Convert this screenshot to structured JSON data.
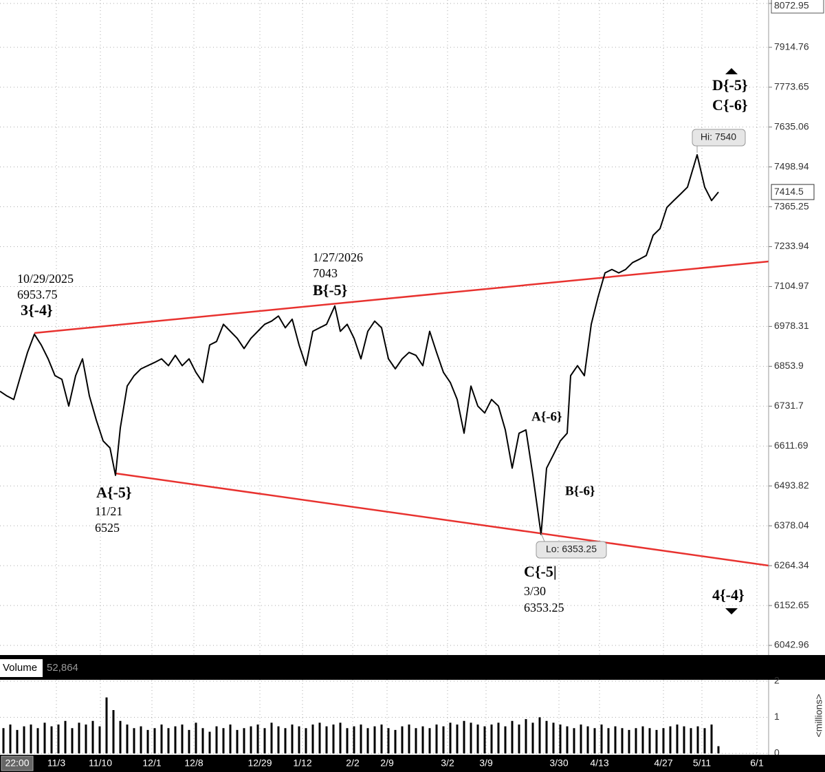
{
  "chart_data": [
    {
      "type": "line",
      "log_scale": true,
      "grid": true,
      "cursor_time": "22:00",
      "xlim": [
        0,
        112
      ],
      "xticks": [
        {
          "value": 8.2,
          "label": "11/3"
        },
        {
          "value": 14.6,
          "label": "11/10"
        },
        {
          "value": 22.1,
          "label": "12/1"
        },
        {
          "value": 28.2,
          "label": "12/8"
        },
        {
          "value": 37.8,
          "label": "12/29"
        },
        {
          "value": 44.0,
          "label": "1/12"
        },
        {
          "value": 51.3,
          "label": "2/2"
        },
        {
          "value": 56.3,
          "label": "2/9"
        },
        {
          "value": 65.1,
          "label": "3/2"
        },
        {
          "value": 70.7,
          "label": "3/9"
        },
        {
          "value": 81.3,
          "label": "3/30"
        },
        {
          "value": 87.2,
          "label": "4/13"
        },
        {
          "value": 96.5,
          "label": "4/27"
        },
        {
          "value": 102.1,
          "label": "5/11"
        },
        {
          "value": 110.1,
          "label": "6/1"
        }
      ],
      "ylim": [
        6042.96,
        8072.95
      ],
      "yticks": [
        6042.96,
        6152.65,
        6264.34,
        6378.04,
        6493.82,
        6611.69,
        6731.7,
        6853.9,
        6978.31,
        7104.97,
        7233.94,
        7365.25,
        7498.94,
        7635.06,
        7773.65,
        7914.76,
        8072.95
      ],
      "x": [
        0,
        1,
        2,
        3,
        4,
        5,
        6,
        7,
        8,
        9,
        10,
        11,
        12,
        13,
        14,
        15,
        16,
        16.8,
        17.5,
        18.5,
        19.5,
        20.5,
        21.5,
        22.5,
        23.5,
        24.5,
        25.5,
        26.5,
        27.5,
        28.5,
        29.5,
        30.5,
        31.5,
        32.5,
        33.5,
        34.5,
        35.5,
        36.5,
        37.5,
        38.5,
        39.5,
        40.5,
        41.5,
        42.5,
        43.5,
        44.5,
        45.5,
        46.5,
        47.5,
        48.7,
        49.5,
        50.5,
        51.5,
        52.5,
        53.5,
        54.5,
        55.5,
        56.5,
        57.5,
        58.5,
        59.5,
        60.5,
        61.5,
        62.5,
        63.5,
        64.5,
        65.5,
        66.5,
        67.5,
        68.5,
        69.5,
        70.5,
        71.5,
        72.5,
        73.5,
        74.5,
        75.5,
        76.5,
        77.5,
        78.7,
        79.5,
        80.5,
        81.5,
        82.5,
        83,
        84,
        85,
        86,
        87,
        88,
        89,
        90,
        91,
        92,
        93,
        94,
        95,
        96,
        97,
        98,
        99,
        100,
        101.4,
        102.5,
        103.5,
        104.5
      ],
      "series": [
        {
          "color": "#000000",
          "values": [
            6777,
            6763,
            6752,
            6825,
            6897,
            6953.75,
            6920,
            6877,
            6825,
            6814,
            6732,
            6825,
            6877,
            6763,
            6690,
            6627,
            6606,
            6525,
            6666,
            6793,
            6825,
            6846,
            6856,
            6866,
            6877,
            6856,
            6888,
            6856,
            6877,
            6835,
            6804,
            6920,
            6931,
            6985,
            6963,
            6941,
            6909,
            6941,
            6963,
            6985,
            6995,
            7011,
            6974,
            7001,
            6920,
            6856,
            6963,
            6974,
            6985,
            7043,
            6963,
            6985,
            6941,
            6877,
            6963,
            6995,
            6974,
            6877,
            6846,
            6877,
            6897,
            6888,
            6856,
            6963,
            6897,
            6835,
            6804,
            6752,
            6650,
            6793,
            6732,
            6711,
            6752,
            6732,
            6660,
            6546,
            6650,
            6660,
            6526,
            6353.25,
            6546,
            6586,
            6627,
            6650,
            6825,
            6856,
            6825,
            6985,
            7072,
            7149,
            7160,
            7149,
            7160,
            7182,
            7193,
            7205,
            7271,
            7293,
            7363,
            7386,
            7408,
            7431,
            7540,
            7431,
            7386,
            7414.5
          ]
        }
      ],
      "annotations": [
        "10/29/2025",
        "6953.75",
        "3{-4}",
        "1/27/2026",
        "7043",
        "B{-5}",
        "A{-5}",
        "11/21",
        "6525",
        "A{-6}",
        "B{-6}",
        "C{-5|",
        "3/30",
        "6353.25",
        "D{-5}",
        "C{-6}",
        "4{-4}",
        "Hi: 7540",
        "Lo: 6353.25"
      ]
    },
    {
      "type": "bar",
      "title": "Volume",
      "subtitle": "52,864",
      "ylabel": "<millions>",
      "color": "#000000",
      "xlim": [
        0,
        112
      ],
      "ylim": [
        0,
        2
      ],
      "yticks": [
        0,
        1,
        2
      ],
      "x": [
        0.5,
        1.5,
        2.5,
        3.5,
        4.5,
        5.5,
        6.5,
        7.5,
        8.5,
        9.5,
        10.5,
        11.5,
        12.5,
        13.5,
        14.5,
        15.5,
        16.5,
        17.5,
        18.5,
        19.5,
        20.5,
        21.5,
        22.5,
        23.5,
        24.5,
        25.5,
        26.5,
        27.5,
        28.5,
        29.5,
        30.5,
        31.5,
        32.5,
        33.5,
        34.5,
        35.5,
        36.5,
        37.5,
        38.5,
        39.5,
        40.5,
        41.5,
        42.5,
        43.5,
        44.5,
        45.5,
        46.5,
        47.5,
        48.5,
        49.5,
        50.5,
        51.5,
        52.5,
        53.5,
        54.5,
        55.5,
        56.5,
        57.5,
        58.5,
        59.5,
        60.5,
        61.5,
        62.5,
        63.5,
        64.5,
        65.5,
        66.5,
        67.5,
        68.5,
        69.5,
        70.5,
        71.5,
        72.5,
        73.5,
        74.5,
        75.5,
        76.5,
        77.5,
        78.5,
        79.5,
        80.5,
        81.5,
        82.5,
        83.5,
        84.5,
        85.5,
        86.5,
        87.5,
        88.5,
        89.5,
        90.5,
        91.5,
        92.5,
        93.5,
        94.5,
        95.5,
        96.5,
        97.5,
        98.5,
        99.5,
        100.5,
        101.5,
        102.5,
        103.5,
        104.5
      ],
      "values": [
        0.7,
        0.8,
        0.65,
        0.75,
        0.8,
        0.7,
        0.85,
        0.75,
        0.8,
        0.9,
        0.7,
        0.85,
        0.8,
        0.9,
        0.75,
        1.55,
        1.2,
        0.9,
        0.8,
        0.7,
        0.75,
        0.65,
        0.7,
        0.8,
        0.7,
        0.75,
        0.8,
        0.65,
        0.85,
        0.7,
        0.6,
        0.75,
        0.7,
        0.8,
        0.65,
        0.7,
        0.75,
        0.8,
        0.7,
        0.85,
        0.75,
        0.7,
        0.8,
        0.75,
        0.7,
        0.8,
        0.85,
        0.75,
        0.8,
        0.85,
        0.7,
        0.75,
        0.8,
        0.7,
        0.75,
        0.8,
        0.7,
        0.65,
        0.75,
        0.8,
        0.7,
        0.75,
        0.7,
        0.8,
        0.75,
        0.85,
        0.8,
        0.9,
        0.85,
        0.8,
        0.75,
        0.8,
        0.85,
        0.75,
        0.9,
        0.8,
        0.95,
        0.85,
        1.0,
        0.9,
        0.85,
        0.8,
        0.75,
        0.7,
        0.8,
        0.75,
        0.7,
        0.8,
        0.7,
        0.75,
        0.7,
        0.65,
        0.7,
        0.75,
        0.7,
        0.65,
        0.7,
        0.75,
        0.8,
        0.75,
        0.7,
        0.75,
        0.7,
        0.8,
        0.2
      ]
    }
  ]
}
